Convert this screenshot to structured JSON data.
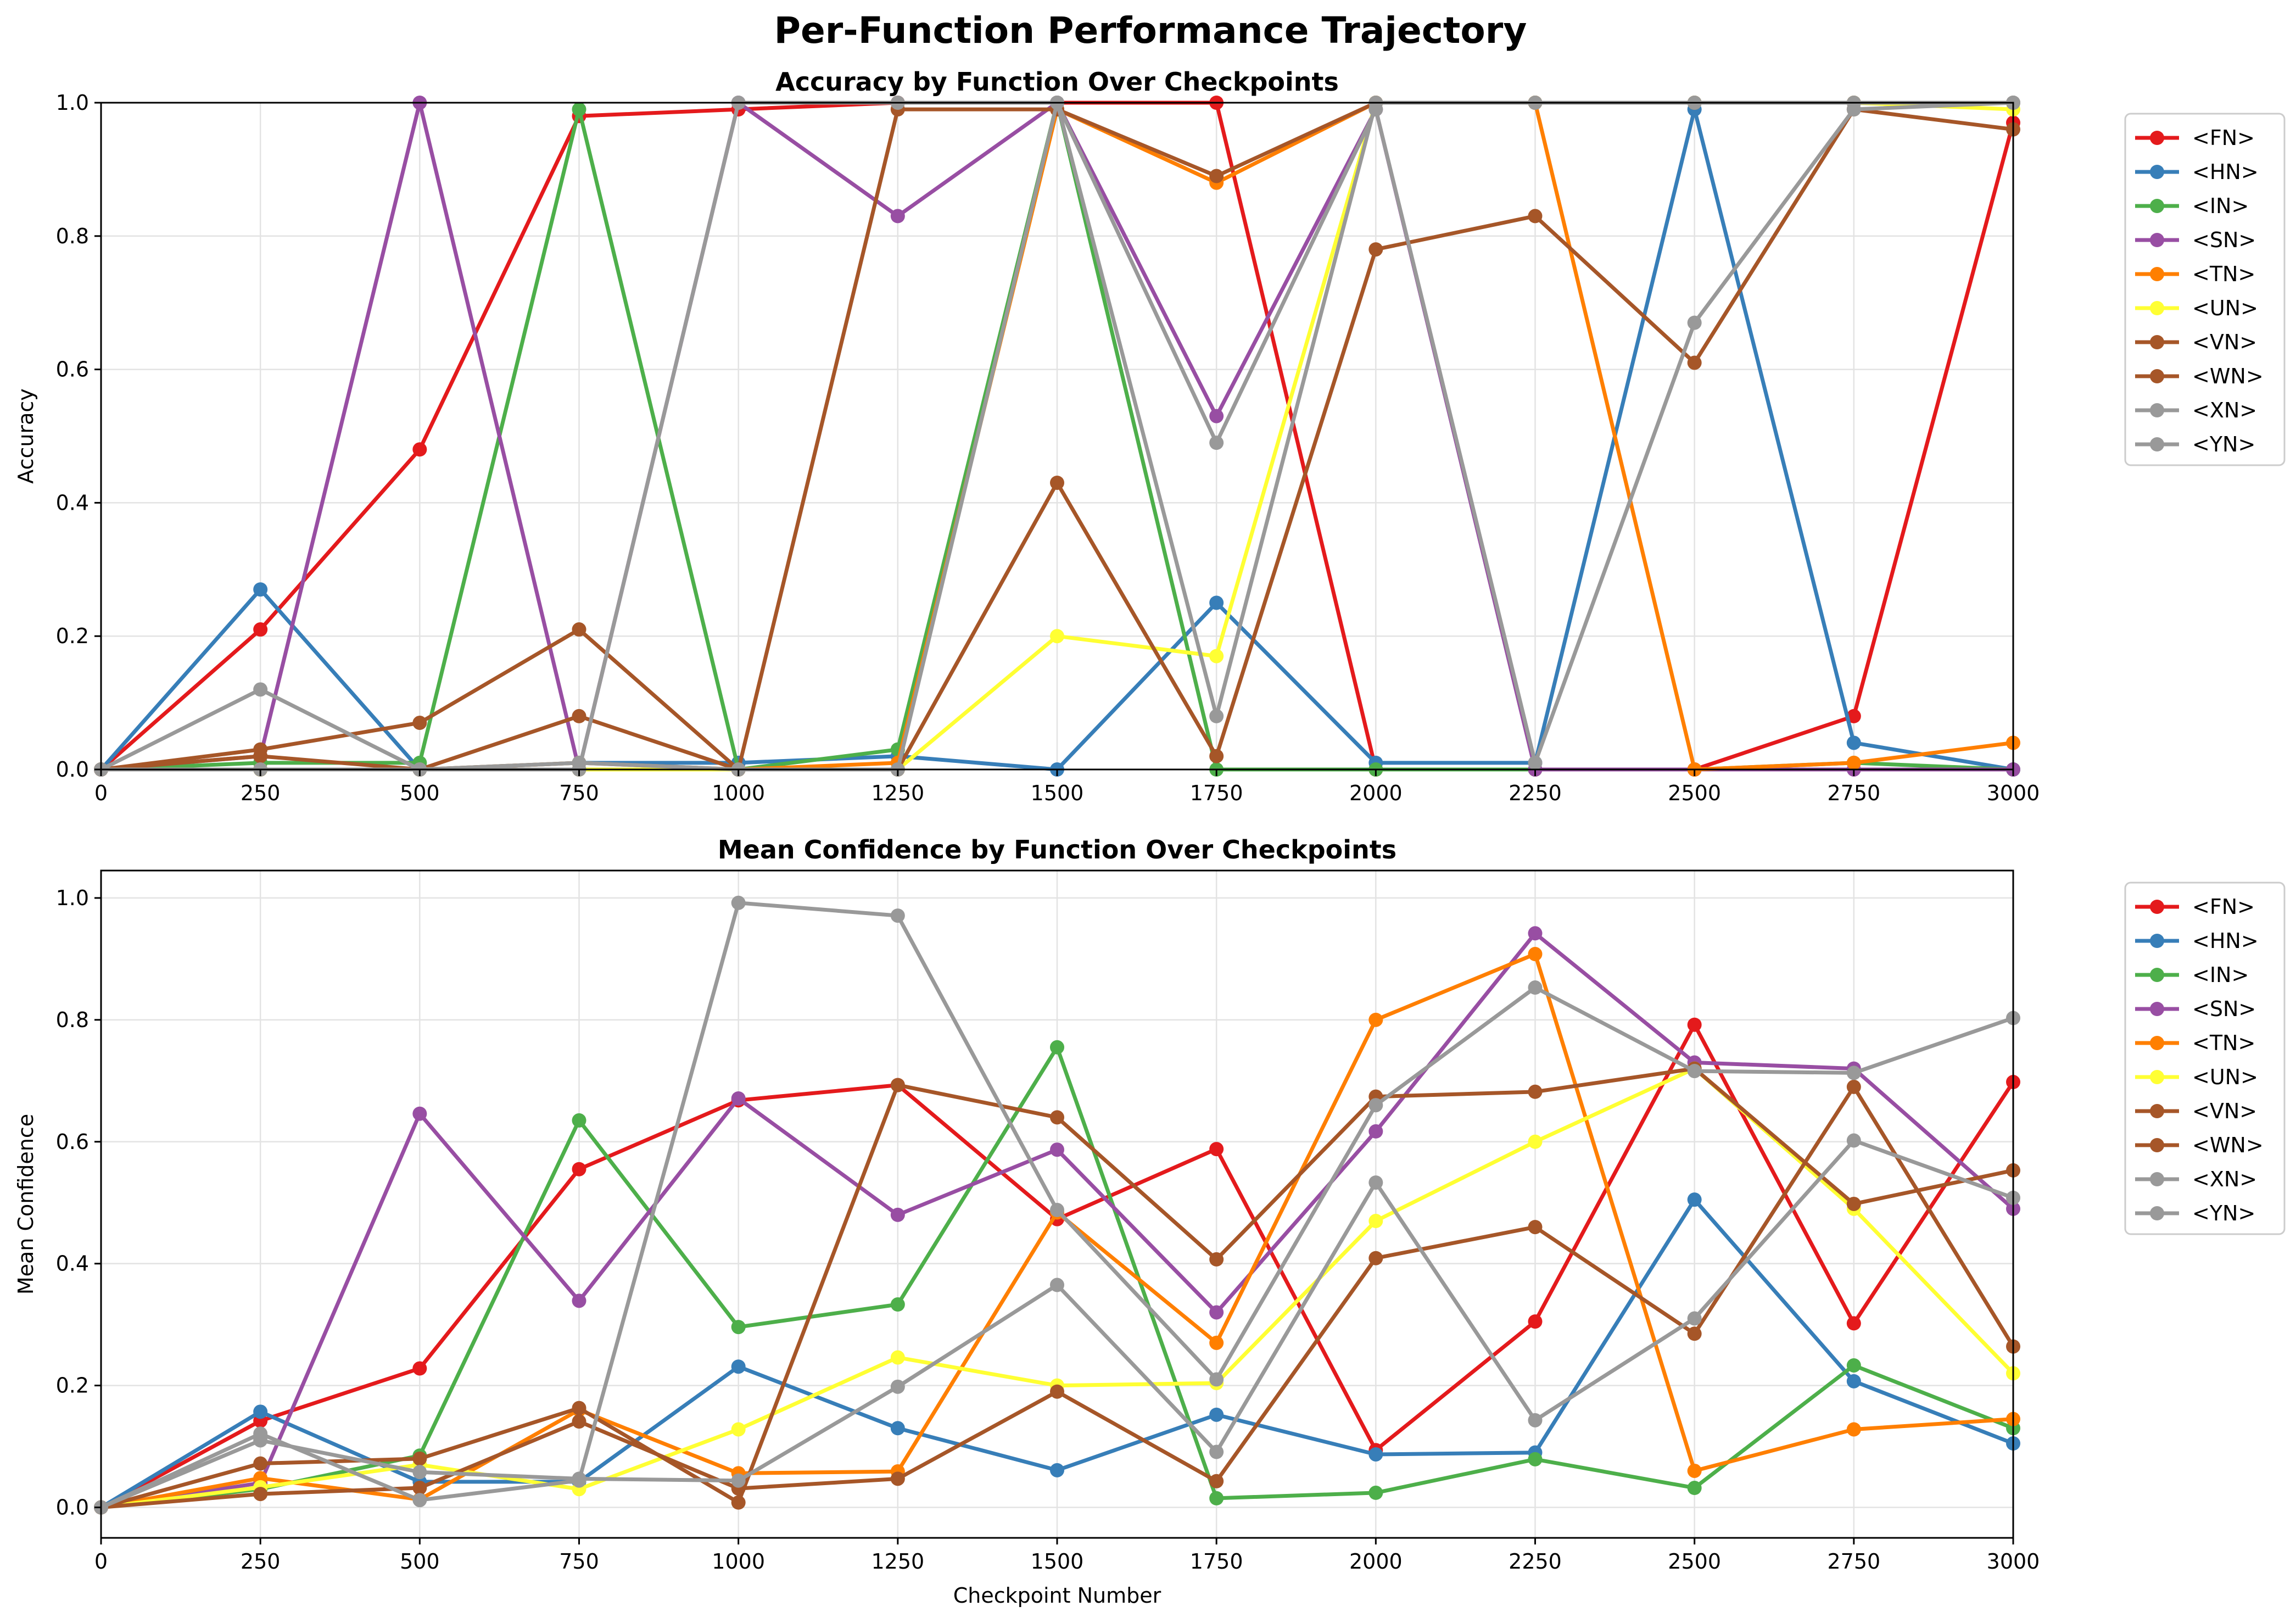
{
  "figure": {
    "suptitle": "Per-Function Performance Trajectory"
  },
  "legend_entries": [
    "<FN>",
    "<HN>",
    "<IN>",
    "<SN>",
    "<TN>",
    "<UN>",
    "<VN>",
    "<WN>",
    "<XN>",
    "<YN>"
  ],
  "colors": {
    "<FN>": "#e41a1c",
    "<HN>": "#377eb8",
    "<IN>": "#4daf4a",
    "<SN>": "#984ea3",
    "<TN>": "#ff7f00",
    "<UN>": "#ffff33",
    "<VN>": "#a65628",
    "<WN>": "#a65628",
    "<XN>": "#999999",
    "<YN>": "#999999"
  },
  "chart_data": [
    {
      "type": "line",
      "title": "Accuracy by Function Over Checkpoints",
      "xlabel": "",
      "ylabel": "Accuracy",
      "xlim": [
        0,
        3000
      ],
      "ylim": [
        0,
        1.0
      ],
      "x_ticks": [
        0,
        250,
        500,
        750,
        1000,
        1250,
        1500,
        1750,
        2000,
        2250,
        2500,
        2750,
        3000
      ],
      "y_ticks": [
        0.0,
        0.2,
        0.4,
        0.6,
        0.8,
        1.0
      ],
      "y_tick_labels": [
        "0.0",
        "0.2",
        "0.4",
        "0.6",
        "0.8",
        "1.0"
      ],
      "grid": true,
      "legend_position": "outside-right",
      "x": [
        0,
        250,
        500,
        750,
        1000,
        1250,
        1500,
        1750,
        2000,
        2250,
        2500,
        2750,
        3000
      ],
      "series": [
        {
          "name": "<FN>",
          "values": [
            0,
            0.21,
            0.48,
            0.98,
            0.99,
            1.0,
            1.0,
            1.0,
            0,
            0,
            0,
            0.08,
            0.97
          ]
        },
        {
          "name": "<HN>",
          "values": [
            0,
            0.27,
            0,
            0.01,
            0.01,
            0.02,
            0,
            0.25,
            0.01,
            0.01,
            0.99,
            0.04,
            0
          ]
        },
        {
          "name": "<IN>",
          "values": [
            0,
            0.01,
            0.01,
            0.99,
            0,
            0.03,
            1.0,
            0,
            0,
            0,
            0,
            0.01,
            0
          ]
        },
        {
          "name": "<SN>",
          "values": [
            0,
            0.02,
            1.0,
            0,
            1.0,
            0.83,
            1.0,
            0.53,
            0.99,
            0,
            0,
            0,
            0
          ]
        },
        {
          "name": "<TN>",
          "values": [
            0,
            0,
            0,
            0.01,
            0,
            0.01,
            0.99,
            0.88,
            1.0,
            1.0,
            0,
            0.01,
            0.04
          ]
        },
        {
          "name": "<UN>",
          "values": [
            0,
            0,
            0,
            0,
            0,
            0,
            0.2,
            0.17,
            1.0,
            1.0,
            1.0,
            1.0,
            0.99
          ]
        },
        {
          "name": "<VN>",
          "values": [
            0,
            0.02,
            0,
            0.08,
            0,
            0,
            0.43,
            0.02,
            0.78,
            0.83,
            0.61,
            0.99,
            0.96
          ]
        },
        {
          "name": "<WN>",
          "values": [
            0,
            0.03,
            0.07,
            0.21,
            0,
            0.99,
            0.99,
            0.89,
            1.0,
            1.0,
            1.0,
            1.0,
            1.0
          ]
        },
        {
          "name": "<XN>",
          "values": [
            0,
            0,
            0,
            0,
            1.0,
            1.0,
            1.0,
            0.08,
            1.0,
            1.0,
            1.0,
            1.0,
            1.0
          ]
        },
        {
          "name": "<YN>",
          "values": [
            0,
            0.12,
            0,
            0.01,
            0,
            0,
            1.0,
            0.49,
            0.99,
            0.01,
            0.67,
            0.99,
            1.0
          ]
        }
      ]
    },
    {
      "type": "line",
      "title": "Mean Confidence by Function Over Checkpoints",
      "xlabel": "Checkpoint Number",
      "ylabel": "Mean Confidence",
      "xlim": [
        0,
        3000
      ],
      "ylim": [
        -0.05,
        1.045
      ],
      "x_ticks": [
        0,
        250,
        500,
        750,
        1000,
        1250,
        1500,
        1750,
        2000,
        2250,
        2500,
        2750,
        3000
      ],
      "y_ticks": [
        0.0,
        0.2,
        0.4,
        0.6,
        0.8,
        1.0
      ],
      "y_tick_labels": [
        "0.0",
        "0.2",
        "0.4",
        "0.6",
        "0.8",
        "1.0"
      ],
      "grid": true,
      "legend_position": "outside-right",
      "x": [
        0,
        250,
        500,
        750,
        1000,
        1250,
        1500,
        1750,
        2000,
        2250,
        2500,
        2750,
        3000
      ],
      "series": [
        {
          "name": "<FN>",
          "values": [
            0,
            0.142,
            0.228,
            0.555,
            0.668,
            0.693,
            0.473,
            0.588,
            0.094,
            0.305,
            0.792,
            0.302,
            0.698
          ]
        },
        {
          "name": "<HN>",
          "values": [
            0,
            0.157,
            0.042,
            0.042,
            0.231,
            0.13,
            0.061,
            0.152,
            0.087,
            0.09,
            0.505,
            0.207,
            0.105
          ]
        },
        {
          "name": "<IN>",
          "values": [
            0,
            0.03,
            0.085,
            0.635,
            0.296,
            0.333,
            0.755,
            0.015,
            0.024,
            0.079,
            0.032,
            0.233,
            0.13
          ]
        },
        {
          "name": "<SN>",
          "values": [
            0,
            0.04,
            0.646,
            0.339,
            0.671,
            0.48,
            0.587,
            0.32,
            0.617,
            0.942,
            0.73,
            0.72,
            0.49
          ]
        },
        {
          "name": "<TN>",
          "values": [
            0,
            0.048,
            0.013,
            0.16,
            0.056,
            0.059,
            0.484,
            0.27,
            0.8,
            0.908,
            0.06,
            0.128,
            0.145
          ]
        },
        {
          "name": "<UN>",
          "values": [
            0,
            0.033,
            0.07,
            0.03,
            0.128,
            0.246,
            0.2,
            0.204,
            0.47,
            0.6,
            0.72,
            0.49,
            0.22
          ]
        },
        {
          "name": "<VN>",
          "values": [
            0,
            0.022,
            0.032,
            0.141,
            0.031,
            0.047,
            0.19,
            0.043,
            0.409,
            0.46,
            0.285,
            0.69,
            0.264
          ]
        },
        {
          "name": "<WN>",
          "values": [
            0,
            0.072,
            0.08,
            0.163,
            0.008,
            0.693,
            0.64,
            0.407,
            0.674,
            0.682,
            0.72,
            0.498,
            0.553
          ]
        },
        {
          "name": "<XN>",
          "values": [
            0,
            0.121,
            0.012,
            0.044,
            0.992,
            0.971,
            0.488,
            0.21,
            0.66,
            0.853,
            0.716,
            0.713,
            0.803
          ]
        },
        {
          "name": "<YN>",
          "values": [
            0,
            0.11,
            0.058,
            0.047,
            0.044,
            0.198,
            0.365,
            0.091,
            0.533,
            0.143,
            0.31,
            0.602,
            0.508
          ]
        }
      ]
    }
  ]
}
